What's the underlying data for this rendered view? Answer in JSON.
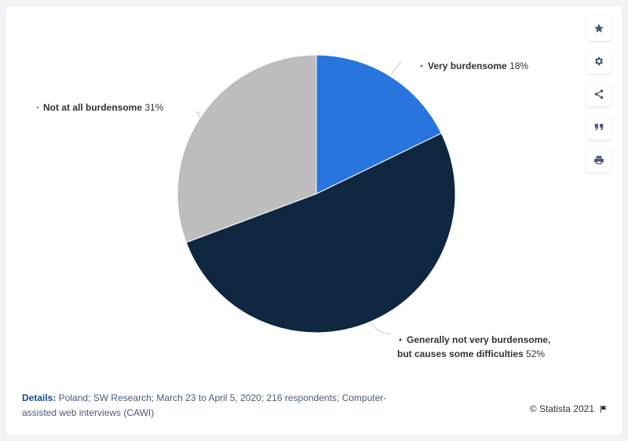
{
  "chart_data": {
    "type": "pie",
    "title": "",
    "slices": [
      {
        "label": "Very burdensome",
        "value": 18,
        "value_label": "18%",
        "color": "#2876dd"
      },
      {
        "label": "Generally not very burdensome, but causes some difficulties",
        "label_lines": [
          "Generally not very burdensome,",
          "but causes some difficulties"
        ],
        "value": 52,
        "value_label": "52%",
        "color": "#0f2740"
      },
      {
        "label": "Not at all burdensome",
        "value": 31,
        "value_label": "31%",
        "color": "#bdbdbd"
      }
    ],
    "start_angle_deg": 0,
    "direction": "clockwise"
  },
  "toolbar": {
    "buttons": [
      {
        "name": "favorite-button",
        "icon": "star-icon"
      },
      {
        "name": "settings-button",
        "icon": "gear-icon"
      },
      {
        "name": "share-button",
        "icon": "share-icon"
      },
      {
        "name": "cite-button",
        "icon": "quote-icon"
      },
      {
        "name": "print-button",
        "icon": "print-icon"
      }
    ]
  },
  "footer": {
    "details_label": "Details:",
    "details_text": " Poland; SW Research; March 23 to April 5, 2020; 216 respondents; Computer-assisted web interviews (CAWI)",
    "copyright": "© Statista 2021",
    "flag_icon": "flag-icon"
  }
}
